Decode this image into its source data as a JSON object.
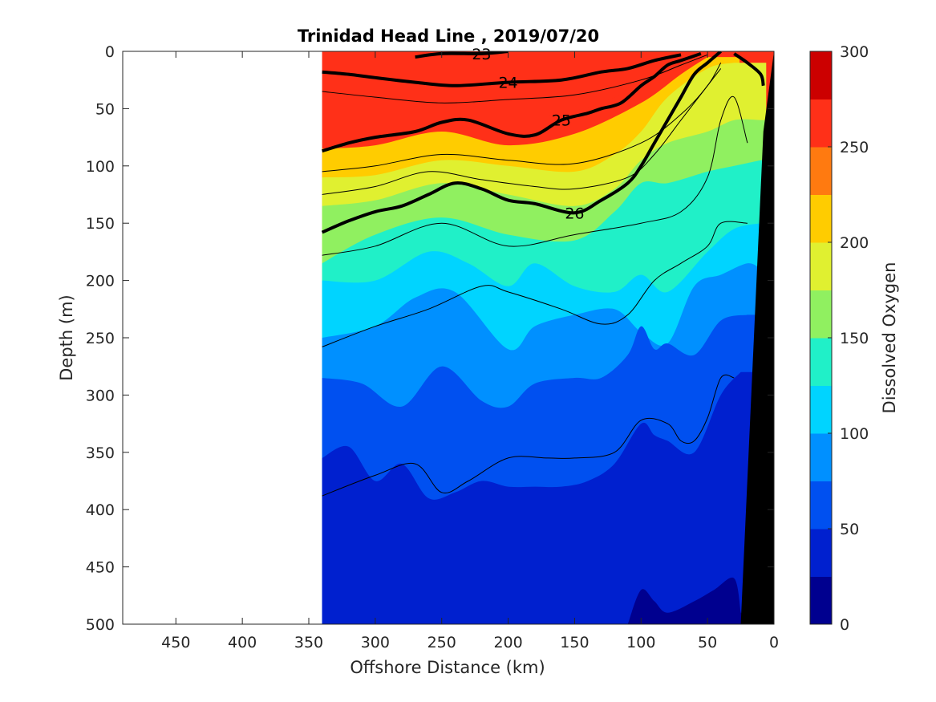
{
  "chart_data": {
    "type": "heatmap",
    "title": "Trinidad Head Line , 2019/07/20",
    "xlabel": "Offshore Distance (km)",
    "ylabel": "Depth (m)",
    "xlim": [
      490,
      0
    ],
    "ylim": [
      500,
      0
    ],
    "x_reversed": true,
    "y_reversed": true,
    "x_ticks": [
      "450",
      "400",
      "350",
      "300",
      "250",
      "200",
      "150",
      "100",
      "50",
      "0"
    ],
    "y_ticks": [
      "0",
      "50",
      "100",
      "150",
      "200",
      "250",
      "300",
      "350",
      "400",
      "450",
      "500"
    ],
    "data_extent_km": [
      340,
      0
    ],
    "colorbar": {
      "label": "Dissolved Oxygen",
      "range": [
        0,
        300
      ],
      "ticks": [
        "300",
        "250",
        "200",
        "150",
        "100",
        "50",
        "0"
      ],
      "levels": [
        0,
        25,
        50,
        75,
        100,
        125,
        150,
        175,
        200,
        225,
        250,
        275,
        300
      ],
      "colors": [
        "#00008f",
        "#0020cf",
        "#0050f0",
        "#0090ff",
        "#00d4ff",
        "#20f0c8",
        "#90f060",
        "#e0f030",
        "#ffcc00",
        "#ff7a10",
        "#ff3018",
        "#cc0000"
      ]
    },
    "oxygen_boundaries": [
      {
        "level": 275,
        "x": [
          300,
          250,
          200,
          150,
          100,
          70
        ],
        "depth": [
          70,
          58,
          60,
          52,
          30,
          5
        ]
      },
      {
        "level": 225,
        "x": [
          340,
          300,
          250,
          200,
          150,
          100,
          70,
          50
        ],
        "depth": [
          85,
          82,
          70,
          82,
          72,
          45,
          20,
          5
        ]
      },
      {
        "level": 200,
        "x": [
          340,
          300,
          250,
          200,
          150,
          120,
          100,
          80,
          50,
          30
        ],
        "depth": [
          110,
          108,
          95,
          100,
          105,
          90,
          70,
          40,
          15,
          10
        ]
      },
      {
        "level": 175,
        "x": [
          340,
          300,
          250,
          200,
          150,
          120,
          100,
          80,
          50,
          30,
          10
        ],
        "depth": [
          135,
          130,
          115,
          125,
          135,
          120,
          95,
          80,
          70,
          60,
          60
        ]
      },
      {
        "level": 150,
        "x": [
          340,
          300,
          250,
          200,
          150,
          120,
          100,
          80,
          50,
          30,
          10
        ],
        "depth": [
          185,
          160,
          145,
          160,
          165,
          140,
          115,
          115,
          105,
          100,
          95
        ]
      },
      {
        "level": 125,
        "x": [
          340,
          300,
          260,
          230,
          200,
          180,
          150,
          120,
          100,
          80,
          50,
          30,
          10
        ],
        "depth": [
          200,
          200,
          175,
          185,
          205,
          185,
          205,
          210,
          195,
          210,
          175,
          155,
          150
        ]
      },
      {
        "level": 100,
        "x": [
          340,
          300,
          270,
          240,
          200,
          180,
          150,
          120,
          100,
          80,
          60,
          40,
          20,
          10
        ],
        "depth": [
          250,
          240,
          215,
          210,
          260,
          240,
          230,
          225,
          245,
          255,
          205,
          195,
          185,
          190
        ]
      },
      {
        "level": 75,
        "x": [
          340,
          310,
          280,
          250,
          220,
          200,
          180,
          150,
          130,
          110,
          100,
          90,
          80,
          60,
          40,
          20
        ],
        "depth": [
          285,
          290,
          310,
          275,
          305,
          310,
          290,
          285,
          285,
          265,
          240,
          260,
          255,
          265,
          235,
          230
        ]
      },
      {
        "level": 50,
        "x": [
          340,
          320,
          300,
          280,
          260,
          240,
          220,
          200,
          180,
          160,
          140,
          120,
          100,
          90,
          80,
          60,
          40,
          25
        ],
        "depth": [
          355,
          345,
          375,
          360,
          390,
          385,
          375,
          380,
          380,
          380,
          375,
          360,
          325,
          335,
          340,
          350,
          300,
          280
        ]
      },
      {
        "level": 25,
        "x": [
          110,
          100,
          90,
          80,
          60,
          45,
          30,
          25
        ],
        "depth": [
          500,
          470,
          480,
          490,
          480,
          470,
          460,
          490
        ]
      }
    ],
    "density_contours": [
      {
        "label": "23",
        "bold": true,
        "x": [
          270,
          250,
          220,
          200
        ],
        "depth": [
          5,
          2,
          2,
          0
        ]
      },
      {
        "label": "24",
        "bold": true,
        "x": [
          340,
          320,
          300,
          270,
          240,
          200,
          160,
          130,
          110,
          90,
          70
        ],
        "depth": [
          18,
          20,
          23,
          27,
          30,
          27,
          25,
          18,
          15,
          8,
          3
        ]
      },
      {
        "label": "25",
        "bold": true,
        "x": [
          340,
          320,
          300,
          270,
          250,
          230,
          200,
          180,
          160,
          140,
          130,
          115,
          100,
          90,
          80,
          70,
          55
        ],
        "depth": [
          87,
          80,
          75,
          70,
          62,
          60,
          72,
          73,
          60,
          54,
          50,
          45,
          30,
          22,
          12,
          8,
          2
        ]
      },
      {
        "label": "26",
        "bold": true,
        "x": [
          340,
          320,
          300,
          280,
          260,
          240,
          220,
          200,
          180,
          150,
          130,
          110,
          100,
          90,
          80,
          70,
          60,
          50,
          40
        ],
        "depth": [
          158,
          148,
          140,
          135,
          125,
          115,
          120,
          130,
          133,
          141,
          130,
          115,
          100,
          80,
          60,
          40,
          20,
          10,
          0
        ]
      },
      {
        "label": "",
        "bold": true,
        "x": [
          30,
          20,
          10,
          8
        ],
        "depth": [
          2,
          10,
          20,
          30
        ]
      },
      {
        "label": "",
        "bold": false,
        "x": [
          340,
          300,
          250,
          200,
          150,
          100,
          70,
          50
        ],
        "depth": [
          35,
          40,
          45,
          42,
          38,
          25,
          12,
          3
        ]
      },
      {
        "label": "",
        "bold": false,
        "x": [
          340,
          300,
          250,
          200,
          150,
          100,
          70,
          50,
          40
        ],
        "depth": [
          105,
          100,
          90,
          95,
          98,
          80,
          55,
          30,
          10
        ]
      },
      {
        "label": "",
        "bold": false,
        "x": [
          340,
          300,
          260,
          220,
          180,
          150,
          110,
          90,
          70,
          50,
          40
        ],
        "depth": [
          125,
          118,
          105,
          112,
          118,
          120,
          110,
          90,
          60,
          30,
          15
        ]
      },
      {
        "label": "",
        "bold": false,
        "x": [
          340,
          300,
          250,
          200,
          150,
          100,
          70,
          50,
          40,
          30,
          20
        ],
        "depth": [
          178,
          170,
          150,
          170,
          160,
          150,
          140,
          110,
          60,
          40,
          80
        ]
      },
      {
        "label": "",
        "bold": false,
        "x": [
          340,
          300,
          260,
          220,
          200,
          160,
          130,
          110,
          90,
          70,
          50,
          40,
          20
        ],
        "depth": [
          258,
          240,
          225,
          205,
          210,
          225,
          238,
          230,
          200,
          185,
          170,
          150,
          150
        ]
      },
      {
        "label": "",
        "bold": false,
        "x": [
          340,
          300,
          270,
          250,
          230,
          200,
          170,
          150,
          120,
          100,
          80,
          70,
          60,
          50,
          40,
          30
        ],
        "depth": [
          388,
          370,
          360,
          385,
          375,
          355,
          355,
          355,
          350,
          322,
          325,
          340,
          340,
          320,
          285,
          285
        ]
      }
    ]
  }
}
